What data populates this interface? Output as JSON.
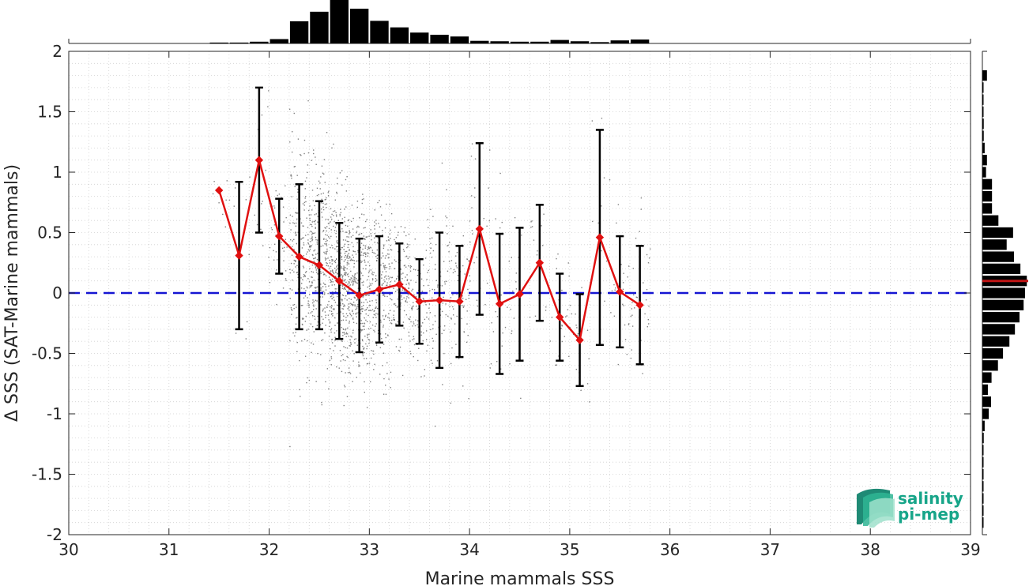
{
  "chart_data": {
    "type": "scatter",
    "xlabel": "Marine mammals SSS",
    "ylabel": "Δ SSS (SAT-Marine mammals)",
    "xlim": [
      30,
      39
    ],
    "ylim": [
      -2,
      2
    ],
    "x_ticks": [
      "30",
      "31",
      "32",
      "33",
      "34",
      "35",
      "36",
      "37",
      "38",
      "39"
    ],
    "y_ticks": [
      "-2",
      "-1.5",
      "-1",
      "-0.5",
      "0",
      "0.5",
      "1",
      "1.5",
      "2"
    ],
    "grid": "minor-dotted",
    "reference_line": {
      "y": 0,
      "style": "dashed",
      "color": "#1414d2"
    },
    "scatter_color": "#808080",
    "binned_mean": {
      "color": "#e01010",
      "marker": "diamond",
      "x": [
        31.5,
        31.7,
        31.9,
        32.1,
        32.3,
        32.5,
        32.7,
        32.9,
        33.1,
        33.3,
        33.5,
        33.7,
        33.9,
        34.1,
        34.3,
        34.5,
        34.7,
        34.9,
        35.1,
        35.3,
        35.5,
        35.7
      ],
      "y": [
        0.85,
        0.31,
        1.1,
        0.47,
        0.3,
        0.23,
        0.1,
        -0.02,
        0.03,
        0.07,
        -0.07,
        -0.06,
        -0.07,
        0.53,
        -0.09,
        -0.01,
        0.25,
        -0.2,
        -0.39,
        0.46,
        0.01,
        -0.1
      ],
      "err": [
        0,
        0.61,
        0.6,
        0.31,
        0.6,
        0.53,
        0.48,
        0.47,
        0.44,
        0.34,
        0.35,
        0.56,
        0.46,
        0.71,
        0.58,
        0.55,
        0.48,
        0.36,
        0.38,
        0.89,
        0.46,
        0.49
      ]
    },
    "top_histogram": {
      "bin_centers": [
        31.5,
        31.7,
        31.9,
        32.1,
        32.3,
        32.5,
        32.7,
        32.9,
        33.1,
        33.3,
        33.5,
        33.7,
        33.9,
        34.1,
        34.3,
        34.5,
        34.7,
        34.9,
        35.1,
        35.3,
        35.5,
        35.7
      ],
      "relative_counts": [
        0.02,
        0.02,
        0.04,
        0.1,
        0.51,
        0.73,
        1.0,
        0.8,
        0.52,
        0.37,
        0.25,
        0.2,
        0.16,
        0.06,
        0.05,
        0.04,
        0.04,
        0.08,
        0.05,
        0.03,
        0.07,
        0.09
      ]
    },
    "right_histogram": {
      "bin_centers": [
        1.8,
        1.7,
        1.6,
        1.5,
        1.4,
        1.3,
        1.2,
        1.1,
        1.0,
        0.9,
        0.8,
        0.7,
        0.6,
        0.5,
        0.4,
        0.3,
        0.2,
        0.1,
        0.0,
        -0.1,
        -0.2,
        -0.3,
        -0.4,
        -0.5,
        -0.6,
        -0.7,
        -0.8,
        -0.9,
        -1.0,
        -1.1,
        -1.2,
        -1.3,
        -1.4,
        -1.5,
        -1.6,
        -1.7,
        -1.8,
        -1.9
      ],
      "relative_counts": [
        0.1,
        0.02,
        0.02,
        0.02,
        0.03,
        0.03,
        0.05,
        0.1,
        0.08,
        0.21,
        0.21,
        0.21,
        0.35,
        0.67,
        0.53,
        0.69,
        0.83,
        0.97,
        0.93,
        0.9,
        0.81,
        0.71,
        0.59,
        0.45,
        0.34,
        0.2,
        0.12,
        0.19,
        0.14,
        0.05,
        0.03,
        0.02,
        0.02,
        0.01,
        0.01,
        0.01,
        0.01,
        0.01
      ],
      "mean_line_y": 0.1,
      "mean_line_color": "#c01515"
    }
  },
  "logo": {
    "line1": "salinity",
    "line2": "pi-mep",
    "color": "#17a589"
  }
}
